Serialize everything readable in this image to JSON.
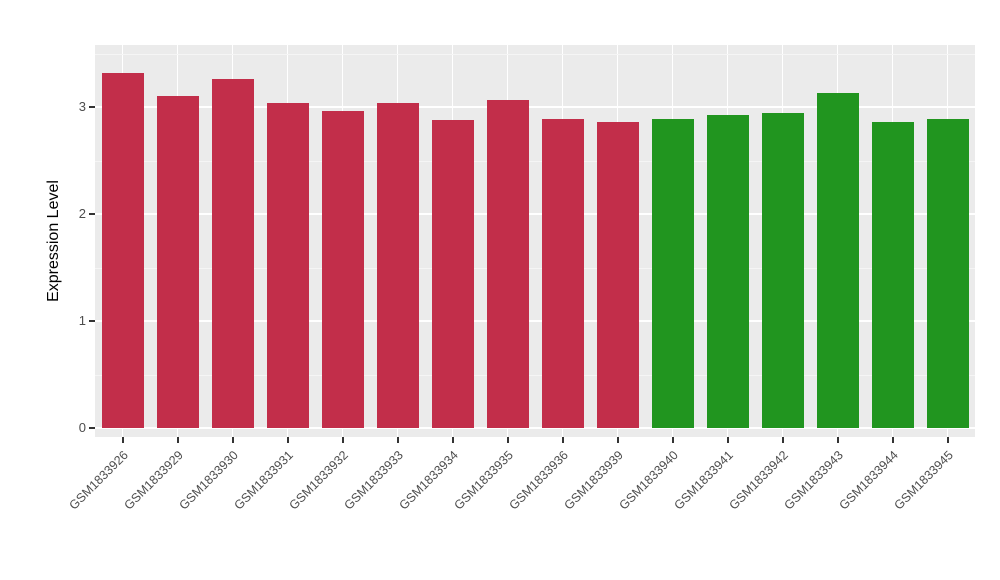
{
  "chart_data": {
    "type": "bar",
    "title": "",
    "xlabel": "",
    "ylabel": "Expression Level",
    "categories": [
      "GSM1833926",
      "GSM1833929",
      "GSM1833930",
      "GSM1833931",
      "GSM1833932",
      "GSM1833933",
      "GSM1833934",
      "GSM1833935",
      "GSM1833936",
      "GSM1833939",
      "GSM1833940",
      "GSM1833941",
      "GSM1833942",
      "GSM1833943",
      "GSM1833944",
      "GSM1833945"
    ],
    "values": [
      3.32,
      3.1,
      3.26,
      3.04,
      2.96,
      3.04,
      2.88,
      3.07,
      2.89,
      2.86,
      2.89,
      2.93,
      2.94,
      3.13,
      2.86,
      2.89
    ],
    "bar_colors": [
      "#C22E4A",
      "#C22E4A",
      "#C22E4A",
      "#C22E4A",
      "#C22E4A",
      "#C22E4A",
      "#C22E4A",
      "#C22E4A",
      "#C22E4A",
      "#C22E4A",
      "#21951F",
      "#21951F",
      "#21951F",
      "#21951F",
      "#21951F",
      "#21951F"
    ],
    "group_colors": {
      "group1_red": "#C22E4A",
      "group2_green": "#21951F"
    },
    "ylim": [
      0,
      3.5
    ],
    "yticks": [
      0,
      1,
      2,
      3
    ],
    "yticks_minor": [
      0.5,
      1.5,
      2.5,
      3.5
    ],
    "grid": true,
    "legend": "none",
    "panel_background": "#EBEBEB",
    "gridline_color": "#FFFFFF"
  }
}
